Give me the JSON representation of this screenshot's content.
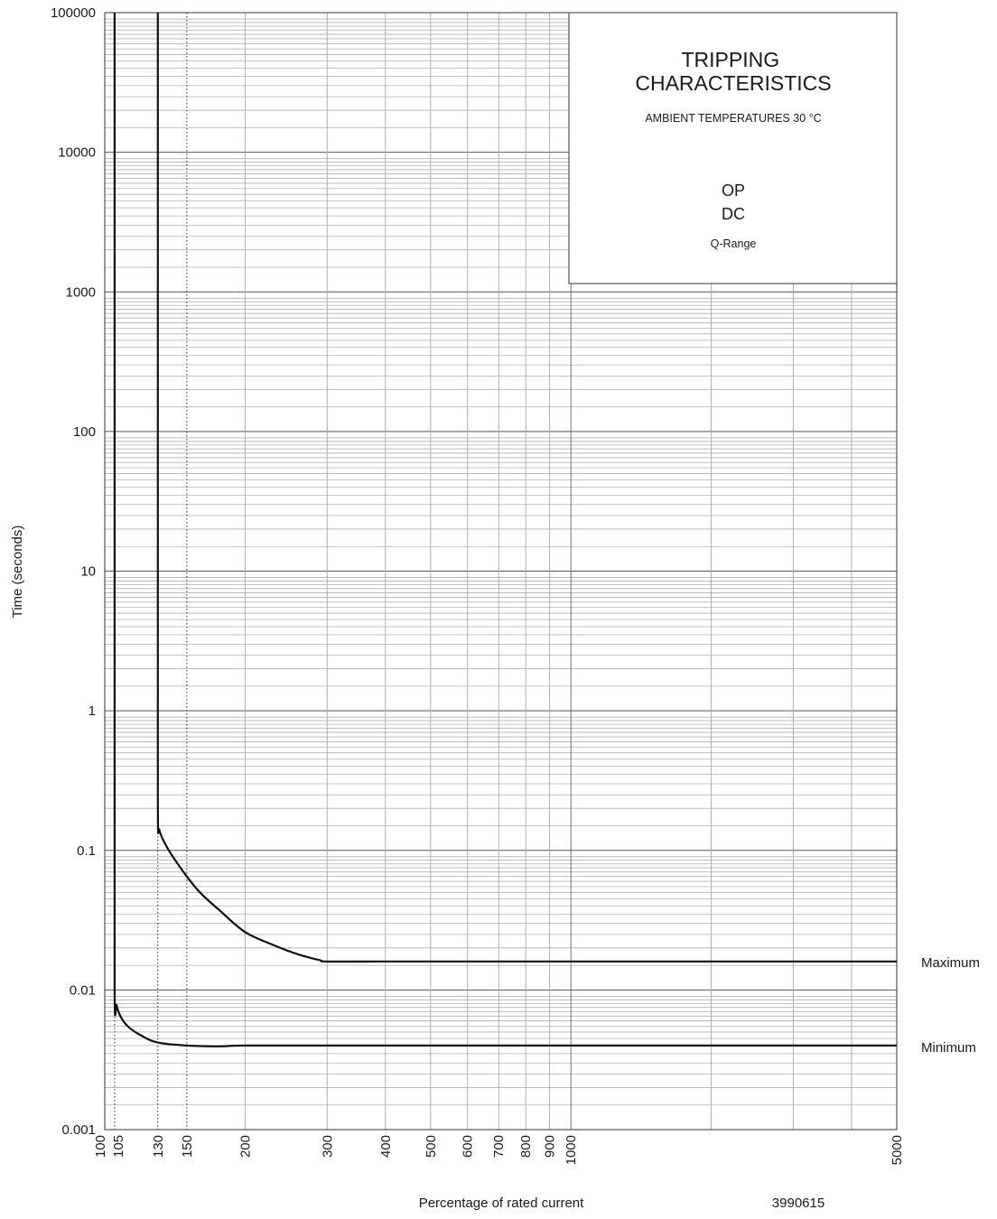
{
  "chart_data": {
    "type": "line",
    "xscale": "log",
    "yscale": "log",
    "xlim": [
      100,
      5000
    ],
    "ylim": [
      0.001,
      100000
    ],
    "xlabel": "Percentage of rated current",
    "ylabel": "Time (seconds)",
    "x_ticks": [
      100,
      105,
      130,
      150,
      200,
      300,
      400,
      500,
      600,
      700,
      800,
      900,
      1000,
      5000
    ],
    "x_tick_labels": [
      "100",
      "105",
      "130",
      "150",
      "200",
      "300",
      "400",
      "500",
      "600",
      "700",
      "800",
      "900",
      "1000",
      "5000"
    ],
    "y_ticks": [
      0.001,
      0.01,
      0.1,
      1,
      10,
      100,
      1000,
      10000,
      100000
    ],
    "y_tick_labels": [
      "0.001",
      "0.01",
      "0.1",
      "1",
      "10",
      "100",
      "1000",
      "10000",
      "100000"
    ],
    "reference_lines_x": [
      105,
      130,
      150
    ],
    "grid": true,
    "series": [
      {
        "name": "Maximum",
        "x": [
          130,
          130,
          130,
          131,
          135,
          140,
          150,
          160,
          175,
          200,
          230,
          260,
          290,
          300,
          400,
          1000,
          5000
        ],
        "y": [
          100000,
          10,
          0.2,
          0.14,
          0.11,
          0.09,
          0.065,
          0.05,
          0.038,
          0.026,
          0.021,
          0.018,
          0.0163,
          0.016,
          0.016,
          0.016,
          0.016
        ]
      },
      {
        "name": "Minimum",
        "x": [
          105,
          105,
          105,
          106,
          108,
          112,
          120,
          130,
          150,
          175,
          200,
          300,
          1000,
          5000
        ],
        "y": [
          100000,
          1,
          0.01,
          0.0078,
          0.0065,
          0.0055,
          0.0047,
          0.0042,
          0.004,
          0.00395,
          0.004,
          0.004,
          0.004,
          0.004
        ]
      }
    ],
    "legend": {
      "title": "TRIPPING\nCHARACTERISTICS",
      "subtitle": "AMBIENT TEMPERATURES 30 °C",
      "line1": "OP",
      "line2": "DC",
      "line3": "Q-Range",
      "placement": "top-right"
    },
    "code": "3990615"
  }
}
